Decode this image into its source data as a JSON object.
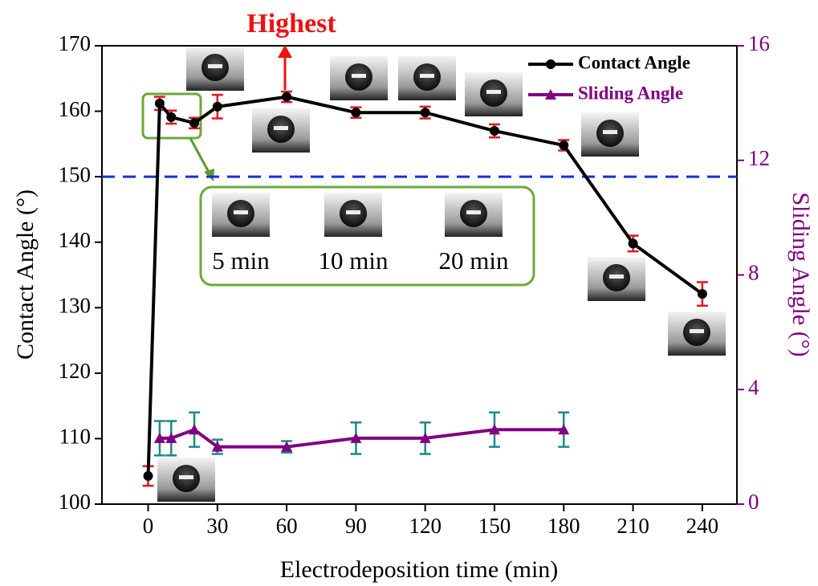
{
  "chart_data": {
    "type": "line",
    "x_label": "Electrodeposition time (min)",
    "y_label": "Contact Angle (°)",
    "y2_label": "Sliding Angle (°)",
    "xlim": [
      -20,
      255
    ],
    "xticks": [
      0,
      30,
      60,
      90,
      120,
      150,
      180,
      210,
      240
    ],
    "ylim": [
      100,
      170
    ],
    "yticks": [
      100,
      110,
      120,
      130,
      140,
      150,
      160,
      170
    ],
    "y2lim": [
      0,
      16
    ],
    "y2ticks": [
      0,
      4,
      8,
      12,
      16
    ],
    "y2_color": "#800080",
    "legend": "upper right",
    "reference_line": {
      "value": 150,
      "color": "#1030e0"
    },
    "annotation": "Highest",
    "annotation_color": "#ee1111",
    "inset_labels": [
      "5 min",
      "10 min",
      "20 min"
    ],
    "series": [
      {
        "name": "Contact Angle",
        "color": "#000000",
        "marker": "circle",
        "error_color": "#e8141c",
        "x": [
          0,
          5,
          10,
          20,
          30,
          60,
          90,
          120,
          150,
          180,
          210,
          240
        ],
        "values": [
          104.3,
          161.2,
          159.1,
          158.2,
          160.7,
          162.2,
          159.8,
          159.8,
          157,
          154.8,
          139.8,
          132.1
        ],
        "errors": [
          1.5,
          1,
          1,
          0.8,
          1.8,
          0.8,
          0.8,
          0.9,
          1,
          0.8,
          1.2,
          1.8
        ]
      },
      {
        "name": "Sliding Angle",
        "color": "#800080",
        "marker": "triangle",
        "error_color": "#1a8a8a",
        "axis": "y2",
        "x": [
          5,
          10,
          20,
          30,
          60,
          90,
          120,
          150,
          180
        ],
        "values": [
          2.3,
          2.3,
          2.6,
          2,
          2,
          2.3,
          2.3,
          2.6,
          2.6
        ],
        "errors": [
          0.6,
          0.6,
          0.6,
          0.25,
          0.2,
          0.55,
          0.55,
          0.6,
          0.6
        ]
      }
    ]
  }
}
